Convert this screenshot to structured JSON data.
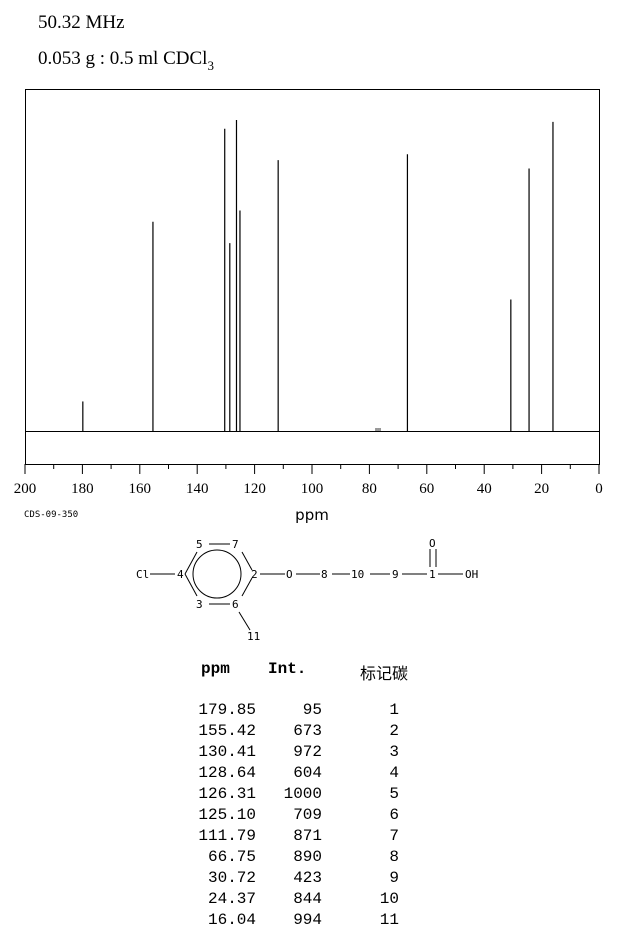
{
  "header": {
    "frequency": "50.32 MHz",
    "sample_prefix": "0.053 g : 0.5 ml CDCl",
    "sample_subscript": "3"
  },
  "code": "CDS-09-350",
  "chart_data": {
    "type": "bar",
    "xlabel": "ppm",
    "xlim": [
      200,
      0
    ],
    "x_ticks": [
      "200",
      "180",
      "160",
      "140",
      "120",
      "100",
      "80",
      "60",
      "40",
      "20",
      "0"
    ],
    "x": [
      179.85,
      155.42,
      130.41,
      128.64,
      126.31,
      125.1,
      111.79,
      66.75,
      30.72,
      24.37,
      16.04
    ],
    "values": [
      95,
      673,
      972,
      604,
      1000,
      709,
      871,
      890,
      423,
      844,
      994
    ],
    "solvent_peak_x": 77.0
  },
  "structure": {
    "labels": [
      "5",
      "7",
      "Cl",
      "4",
      "2",
      "O",
      "8",
      "10",
      "9",
      "1",
      "OH",
      "O",
      "3",
      "6",
      "11"
    ]
  },
  "table": {
    "headers": [
      "ppm",
      "Int.",
      "标记碳"
    ],
    "rows": [
      [
        "179.85",
        "95",
        "1"
      ],
      [
        "155.42",
        "673",
        "2"
      ],
      [
        "130.41",
        "972",
        "3"
      ],
      [
        "128.64",
        "604",
        "4"
      ],
      [
        "126.31",
        "1000",
        "5"
      ],
      [
        "125.10",
        "709",
        "6"
      ],
      [
        "111.79",
        "871",
        "7"
      ],
      [
        "66.75",
        "890",
        "8"
      ],
      [
        "30.72",
        "423",
        "9"
      ],
      [
        "24.37",
        "844",
        "10"
      ],
      [
        "16.04",
        "994",
        "11"
      ]
    ]
  }
}
